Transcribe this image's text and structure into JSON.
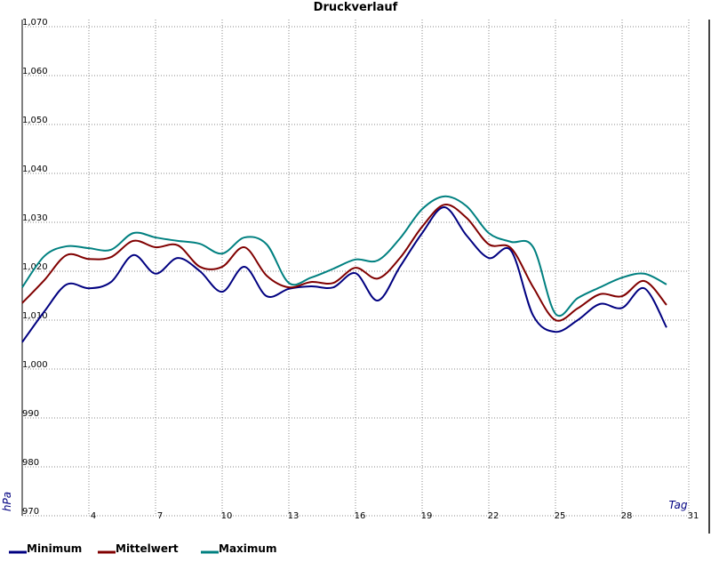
{
  "chart_data": {
    "type": "line",
    "title": "Druckverlauf",
    "xlabel": "Tag",
    "ylabel": "hPa",
    "x": [
      1,
      2,
      3,
      4,
      5,
      6,
      7,
      8,
      9,
      10,
      11,
      12,
      13,
      14,
      15,
      16,
      17,
      18,
      19,
      20,
      21,
      22,
      23,
      24,
      25,
      26,
      27,
      28,
      29,
      30
    ],
    "xlim": [
      1,
      31
    ],
    "xticks": [
      4,
      7,
      10,
      13,
      16,
      19,
      22,
      25,
      28,
      31
    ],
    "ylim": [
      970,
      1070
    ],
    "yticks": [
      970,
      980,
      990,
      {
        "value": 1000,
        "label": "1,000"
      },
      {
        "value": 1010,
        "label": "1,010"
      },
      {
        "value": 1020,
        "label": "1,020"
      },
      {
        "value": 1030,
        "label": "1,030"
      },
      {
        "value": 1040,
        "label": "1,040"
      },
      {
        "value": 1050,
        "label": "1,050"
      },
      {
        "value": 1060,
        "label": "1,060"
      },
      {
        "value": 1070,
        "label": "1,070"
      }
    ],
    "grid": true,
    "series": [
      {
        "name": "Minimum",
        "color": "#000080",
        "values": [
          1005.5,
          1011.8,
          1017.3,
          1016.5,
          1017.8,
          1023.3,
          1019.5,
          1022.7,
          1020,
          1015.8,
          1020.9,
          1014.9,
          1016.4,
          1016.9,
          1016.7,
          1019.6,
          1014,
          1020.9,
          1027.8,
          1033.1,
          1027.3,
          1022.7,
          1024.2,
          1010.9,
          1007.6,
          1010,
          1013.3,
          1012.5,
          1016.5,
          1008.5
        ]
      },
      {
        "name": "Mittelwert",
        "color": "#800000",
        "values": [
          1013.5,
          1018.2,
          1023.3,
          1022.5,
          1022.9,
          1026.2,
          1024.9,
          1025.3,
          1020.9,
          1020.9,
          1024.9,
          1019.1,
          1016.7,
          1017.8,
          1017.6,
          1020.7,
          1018.5,
          1022.7,
          1029.1,
          1033.6,
          1030.9,
          1025.5,
          1024.7,
          1016.7,
          1010,
          1012.4,
          1015.3,
          1014.9,
          1018,
          1013.1
        ]
      },
      {
        "name": "Maximum",
        "color": "#008080",
        "values": [
          1016.7,
          1023.1,
          1025.1,
          1024.7,
          1024.4,
          1027.8,
          1026.9,
          1026.2,
          1025.6,
          1023.6,
          1026.9,
          1025.5,
          1017.6,
          1018.7,
          1020.5,
          1022.4,
          1022.2,
          1026.7,
          1032.7,
          1035.3,
          1033.3,
          1027.8,
          1026,
          1024.9,
          1011.3,
          1014.5,
          1016.7,
          1018.7,
          1019.5,
          1017.3
        ]
      }
    ]
  }
}
